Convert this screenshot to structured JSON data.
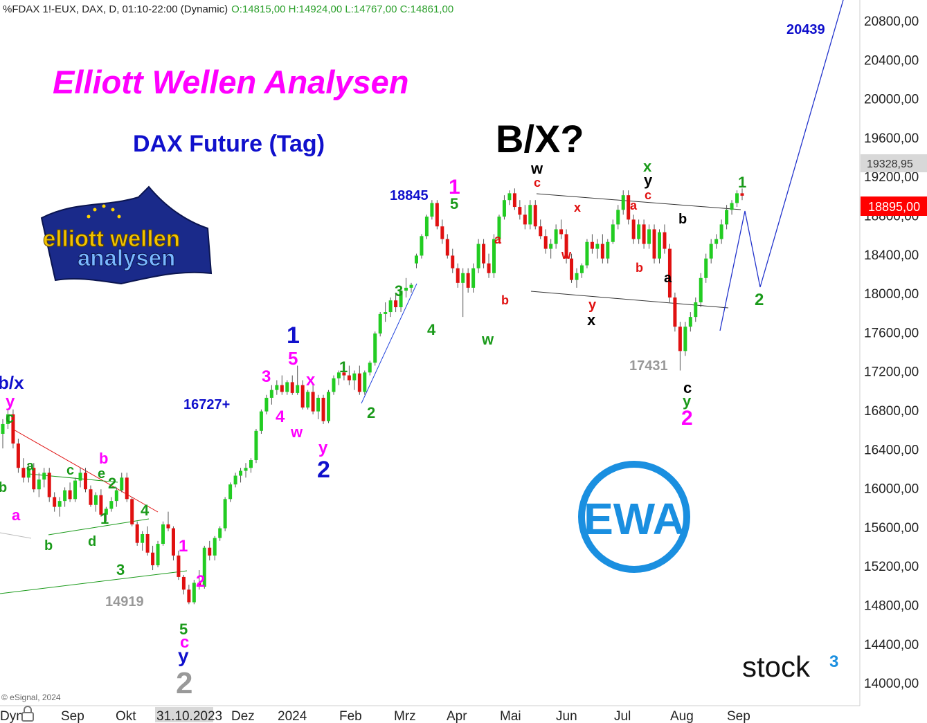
{
  "header": {
    "symbol_info": "%FDAX 1!-EUX, DAX, D, 01:10-22:00 (Dynamic)",
    "ohlc": "O:14815,00 H:14924,00 L:14767,00 C:14861,00",
    "symbol_color": "#222222",
    "ohlc_color": "#2ca02c"
  },
  "titles": {
    "brand": "Elliott Wellen Analysen",
    "subtitle": "DAX Future (Tag)",
    "scenario": "B/X?"
  },
  "logos": {
    "flag_logo_lines": [
      "elliott wellen",
      "analysen"
    ],
    "ewa_badge": "EWA",
    "stock3": "stock",
    "stock3_sup": "3"
  },
  "copyright": "© eSignal, 2024",
  "colors": {
    "up": "#22cc22",
    "down": "#e01010",
    "magenta": "#ff00ff",
    "green": "#1a9a1a",
    "blue": "#1010cc",
    "red": "#e01010",
    "black": "#000000",
    "grey": "#999999",
    "price_tag_bg": "#ff0000",
    "crosshair_tag_bg": "#d8d8d8",
    "ewa_blue": "#1a8fe0"
  },
  "price_axis": {
    "ticks": [
      "20800,00",
      "20400,00",
      "20000,00",
      "19600,00",
      "19200,00",
      "18800,00",
      "18400,00",
      "18000,00",
      "17600,00",
      "17200,00",
      "16800,00",
      "16400,00",
      "16000,00",
      "15600,00",
      "15200,00",
      "14800,00",
      "14400,00",
      "14000,00"
    ],
    "crosshair_value": "19328,95",
    "last_price": "18895,00"
  },
  "time_axis": {
    "ticks": [
      "Dyn",
      "Sep",
      "Okt",
      "31.10.2023",
      "Dez",
      "2024",
      "Feb",
      "Mrz",
      "Apr",
      "Mai",
      "Jun",
      "Jul",
      "Aug",
      "Sep"
    ],
    "highlight": "31.10.2023"
  },
  "chart_data": {
    "type": "candlestick",
    "title": "DAX Future (Tag)",
    "symbol": "%FDAX 1!-EUX",
    "interval": "D",
    "ylim": [
      13800,
      21000
    ],
    "price_levels": {
      "target": 20439,
      "high_annot": 18845,
      "low_annot": 17431,
      "low_oct": 14919,
      "mid_annot": "16727+"
    },
    "candles": [
      [
        16450,
        16600,
        16300,
        16550
      ],
      [
        16550,
        16700,
        16500,
        16650
      ],
      [
        16650,
        16700,
        16300,
        16350
      ],
      [
        16350,
        16400,
        16050,
        16100
      ],
      [
        16100,
        16200,
        15950,
        16000
      ],
      [
        16000,
        16150,
        15950,
        16100
      ],
      [
        16100,
        16150,
        15850,
        15880
      ],
      [
        15880,
        16050,
        15800,
        15980
      ],
      [
        15980,
        16100,
        15900,
        16050
      ],
      [
        16050,
        16100,
        15750,
        15800
      ],
      [
        15800,
        15850,
        15650,
        15700
      ],
      [
        15700,
        15800,
        15600,
        15760
      ],
      [
        15760,
        15900,
        15700,
        15870
      ],
      [
        15870,
        15950,
        15750,
        15780
      ],
      [
        15780,
        16000,
        15750,
        15970
      ],
      [
        15970,
        16100,
        15900,
        16050
      ],
      [
        16050,
        16100,
        15850,
        15880
      ],
      [
        15880,
        15920,
        15700,
        15720
      ],
      [
        15720,
        15850,
        15650,
        15820
      ],
      [
        15820,
        15880,
        15600,
        15620
      ],
      [
        15620,
        15700,
        15550,
        15680
      ],
      [
        15680,
        15800,
        15650,
        15760
      ],
      [
        15760,
        15900,
        15700,
        15870
      ],
      [
        15870,
        16050,
        15850,
        16000
      ],
      [
        16000,
        16050,
        15750,
        15780
      ],
      [
        15780,
        15800,
        15500,
        15520
      ],
      [
        15520,
        15550,
        15300,
        15330
      ],
      [
        15330,
        15450,
        15250,
        15420
      ],
      [
        15420,
        15500,
        15200,
        15230
      ],
      [
        15230,
        15300,
        15050,
        15100
      ],
      [
        15100,
        15350,
        15080,
        15320
      ],
      [
        15320,
        15550,
        15300,
        15520
      ],
      [
        15520,
        15650,
        15450,
        15480
      ],
      [
        15480,
        15500,
        15150,
        15200
      ],
      [
        15200,
        15250,
        14950,
        14980
      ],
      [
        14980,
        15000,
        14800,
        14850
      ],
      [
        14850,
        14900,
        14700,
        14720
      ],
      [
        14720,
        14950,
        14700,
        14920
      ],
      [
        14920,
        15050,
        14850,
        14880
      ],
      [
        14880,
        15300,
        14860,
        15280
      ],
      [
        15280,
        15350,
        15150,
        15200
      ],
      [
        15200,
        15400,
        15150,
        15380
      ],
      [
        15380,
        15500,
        15350,
        15480
      ],
      [
        15480,
        15800,
        15450,
        15780
      ],
      [
        15780,
        15950,
        15750,
        15930
      ],
      [
        15930,
        16050,
        15900,
        16020
      ],
      [
        16020,
        16100,
        15950,
        16070
      ],
      [
        16070,
        16150,
        16000,
        16100
      ],
      [
        16100,
        16200,
        16050,
        16180
      ],
      [
        16180,
        16500,
        16150,
        16480
      ],
      [
        16480,
        16700,
        16450,
        16680
      ],
      [
        16680,
        16850,
        16650,
        16820
      ],
      [
        16820,
        16950,
        16750,
        16900
      ],
      [
        16900,
        17000,
        16850,
        16950
      ],
      [
        16950,
        17050,
        16850,
        16880
      ],
      [
        16880,
        17000,
        16850,
        16980
      ],
      [
        16980,
        17050,
        16850,
        16870
      ],
      [
        16870,
        17150,
        16850,
        16950
      ],
      [
        16950,
        17000,
        16700,
        16720
      ],
      [
        16720,
        16900,
        16700,
        16880
      ],
      [
        16880,
        16950,
        16650,
        16680
      ],
      [
        16680,
        16850,
        16600,
        16820
      ],
      [
        16820,
        16850,
        16550,
        16580
      ],
      [
        16580,
        16900,
        16560,
        16880
      ],
      [
        16880,
        17050,
        16850,
        17020
      ],
      [
        17020,
        17100,
        16950,
        17080
      ],
      [
        17080,
        17150,
        17000,
        17050
      ],
      [
        17050,
        17150,
        16950,
        17000
      ],
      [
        17000,
        17100,
        16900,
        17070
      ],
      [
        17070,
        17150,
        16850,
        16880
      ],
      [
        16880,
        17100,
        16850,
        17080
      ],
      [
        17080,
        17200,
        17050,
        17180
      ],
      [
        17180,
        17500,
        17150,
        17480
      ],
      [
        17480,
        17700,
        17450,
        17680
      ],
      [
        17680,
        17800,
        17600,
        17700
      ],
      [
        17700,
        17850,
        17650,
        17820
      ],
      [
        17820,
        17900,
        17700,
        17750
      ],
      [
        17750,
        17950,
        17700,
        17920
      ],
      [
        17920,
        18050,
        17850,
        17950
      ],
      [
        17950,
        18000,
        17900,
        17980
      ],
      [
        18200,
        18300,
        18150,
        18280
      ],
      [
        18280,
        18500,
        18250,
        18480
      ],
      [
        18480,
        18700,
        18450,
        18680
      ],
      [
        18680,
        18850,
        18650,
        18820
      ],
      [
        18820,
        18850,
        18550,
        18580
      ],
      [
        18580,
        18650,
        18400,
        18450
      ],
      [
        18450,
        18500,
        18250,
        18280
      ],
      [
        18280,
        18350,
        18100,
        18150
      ],
      [
        18150,
        18200,
        17950,
        18000
      ],
      [
        18000,
        18150,
        17650,
        18100
      ],
      [
        18100,
        18150,
        17900,
        17950
      ],
      [
        17950,
        18200,
        17900,
        18150
      ],
      [
        18150,
        18450,
        18100,
        18400
      ],
      [
        18400,
        18450,
        18150,
        18200
      ],
      [
        18200,
        18300,
        18050,
        18100
      ],
      [
        18100,
        18500,
        18050,
        18450
      ],
      [
        18450,
        18700,
        18400,
        18680
      ],
      [
        18680,
        18900,
        18650,
        18850
      ],
      [
        18850,
        18950,
        18800,
        18920
      ],
      [
        18920,
        18970,
        18750,
        18780
      ],
      [
        18780,
        18850,
        18650,
        18700
      ],
      [
        18700,
        18800,
        18550,
        18600
      ],
      [
        18600,
        18850,
        18550,
        18800
      ],
      [
        18800,
        18850,
        18550,
        18580
      ],
      [
        18580,
        18650,
        18450,
        18480
      ],
      [
        18480,
        18550,
        18300,
        18350
      ],
      [
        18350,
        18450,
        18250,
        18400
      ],
      [
        18400,
        18600,
        18350,
        18550
      ],
      [
        18550,
        18650,
        18450,
        18500
      ],
      [
        18500,
        18550,
        18200,
        18250
      ],
      [
        18250,
        18300,
        18000,
        18030
      ],
      [
        18030,
        18150,
        17950,
        18100
      ],
      [
        18100,
        18200,
        18050,
        18180
      ],
      [
        18180,
        18450,
        18150,
        18420
      ],
      [
        18420,
        18500,
        18300,
        18350
      ],
      [
        18350,
        18450,
        18250,
        18400
      ],
      [
        18400,
        18500,
        18200,
        18250
      ],
      [
        18250,
        18450,
        18200,
        18420
      ],
      [
        18420,
        18650,
        18400,
        18600
      ],
      [
        18600,
        18800,
        18550,
        18750
      ],
      [
        18750,
        18950,
        18700,
        18900
      ],
      [
        18900,
        18950,
        18600,
        18650
      ],
      [
        18650,
        18700,
        18400,
        18450
      ],
      [
        18450,
        18650,
        18400,
        18600
      ],
      [
        18600,
        18650,
        18350,
        18400
      ],
      [
        18400,
        18600,
        18350,
        18550
      ],
      [
        18550,
        18600,
        18200,
        18250
      ],
      [
        18250,
        18550,
        18200,
        18520
      ],
      [
        18520,
        18600,
        18300,
        18350
      ],
      [
        18350,
        18400,
        17800,
        17850
      ],
      [
        17850,
        17900,
        17500,
        17550
      ],
      [
        17550,
        17600,
        17100,
        17300
      ],
      [
        17300,
        17600,
        17250,
        17550
      ],
      [
        17550,
        17700,
        17500,
        17650
      ],
      [
        17650,
        17850,
        17600,
        17800
      ],
      [
        17800,
        18100,
        17750,
        18050
      ],
      [
        18050,
        18300,
        18000,
        18250
      ],
      [
        18250,
        18450,
        18200,
        18400
      ],
      [
        18400,
        18500,
        18350,
        18450
      ],
      [
        18450,
        18650,
        18400,
        18600
      ],
      [
        18600,
        18800,
        18550,
        18750
      ],
      [
        18750,
        18850,
        18700,
        18820
      ],
      [
        18820,
        18950,
        18780,
        18920
      ],
      [
        18920,
        18970,
        18850,
        18895
      ]
    ]
  },
  "annotations": [
    {
      "text": "1",
      "color": "magenta",
      "size": 30
    },
    {
      "text": "5",
      "color": "green",
      "size": 22
    },
    {
      "text": "18845",
      "color": "blue",
      "size": 20
    },
    {
      "text": "3",
      "color": "green",
      "size": 22
    },
    {
      "text": "4",
      "color": "green",
      "size": 22
    },
    {
      "text": "w",
      "color": "green",
      "size": 22
    },
    {
      "text": "a",
      "color": "red",
      "size": 18
    },
    {
      "text": "b",
      "color": "red",
      "size": 18
    },
    {
      "text": "w",
      "color": "black",
      "size": 22
    },
    {
      "text": "c",
      "color": "red",
      "size": 18
    },
    {
      "text": "x",
      "color": "red",
      "size": 18
    },
    {
      "text": "w",
      "color": "red",
      "size": 18
    },
    {
      "text": "y",
      "color": "red",
      "size": 20
    },
    {
      "text": "x",
      "color": "black",
      "size": 22
    },
    {
      "text": "x",
      "color": "green",
      "size": 22
    },
    {
      "text": "y",
      "color": "black",
      "size": 22
    },
    {
      "text": "c",
      "color": "red",
      "size": 18
    },
    {
      "text": "a",
      "color": "red",
      "size": 18
    },
    {
      "text": "b",
      "color": "red",
      "size": 18
    },
    {
      "text": "b",
      "color": "black",
      "size": 20
    },
    {
      "text": "a",
      "color": "black",
      "size": 20
    },
    {
      "text": "17431",
      "color": "grey",
      "size": 20
    },
    {
      "text": "c",
      "color": "black",
      "size": 22
    },
    {
      "text": "y",
      "color": "green",
      "size": 22
    },
    {
      "text": "2",
      "color": "magenta",
      "size": 30
    },
    {
      "text": "1",
      "color": "green",
      "size": 22
    },
    {
      "text": "2",
      "color": "green",
      "size": 24
    },
    {
      "text": "20439",
      "color": "blue",
      "size": 20
    },
    {
      "text": "1",
      "color": "blue",
      "size": 34
    },
    {
      "text": "5",
      "color": "magenta",
      "size": 26
    },
    {
      "text": "3",
      "color": "magenta",
      "size": 24
    },
    {
      "text": "4",
      "color": "magenta",
      "size": 24
    },
    {
      "text": "w",
      "color": "magenta",
      "size": 22
    },
    {
      "text": "x",
      "color": "magenta",
      "size": 24
    },
    {
      "text": "y",
      "color": "magenta",
      "size": 24
    },
    {
      "text": "2",
      "color": "blue",
      "size": 34
    },
    {
      "text": "16727+",
      "color": "blue",
      "size": 20
    },
    {
      "text": "1",
      "color": "green",
      "size": 22
    },
    {
      "text": "2",
      "color": "green",
      "size": 22
    },
    {
      "text": "b/x",
      "color": "blue",
      "size": 26
    },
    {
      "text": "y",
      "color": "magenta",
      "size": 24
    },
    {
      "text": "c",
      "color": "green",
      "size": 22
    },
    {
      "text": "a",
      "color": "green",
      "size": 20
    },
    {
      "text": "c",
      "color": "green",
      "size": 20
    },
    {
      "text": "b",
      "color": "magenta",
      "size": 22
    },
    {
      "text": "e",
      "color": "green",
      "size": 20
    },
    {
      "text": "2",
      "color": "green",
      "size": 22
    },
    {
      "text": "b",
      "color": "green",
      "size": 20
    },
    {
      "text": "a",
      "color": "magenta",
      "size": 22
    },
    {
      "text": "b",
      "color": "green",
      "size": 20
    },
    {
      "text": "d",
      "color": "green",
      "size": 20
    },
    {
      "text": "1",
      "color": "green",
      "size": 22
    },
    {
      "text": "4",
      "color": "green",
      "size": 22
    },
    {
      "text": "3",
      "color": "green",
      "size": 22
    },
    {
      "text": "14919",
      "color": "grey",
      "size": 20
    },
    {
      "text": "1",
      "color": "magenta",
      "size": 24
    },
    {
      "text": "2",
      "color": "magenta",
      "size": 24
    },
    {
      "text": "5",
      "color": "green",
      "size": 22
    },
    {
      "text": "c",
      "color": "magenta",
      "size": 24
    },
    {
      "text": "y",
      "color": "blue",
      "size": 28
    },
    {
      "text": "2",
      "color": "grey",
      "size": 44
    }
  ]
}
